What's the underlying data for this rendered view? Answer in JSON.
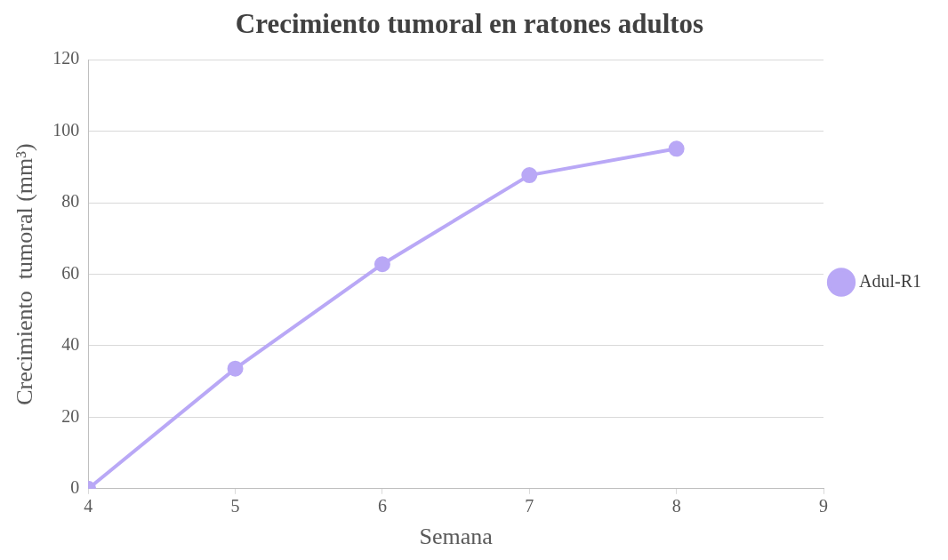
{
  "chart_data": {
    "type": "line",
    "title": "Crecimiento tumoral en ratones adultos",
    "xlabel": "Semana",
    "ylabel": "Crecimiento  tumoral (mm³)",
    "x": [
      4,
      5,
      6,
      7,
      8
    ],
    "series": [
      {
        "name": "Adul-R1",
        "color": "#b9a8f6",
        "values": [
          0,
          33.6,
          62.8,
          87.7,
          95.1
        ]
      }
    ],
    "xlim": [
      4,
      9
    ],
    "xticks": [
      4,
      5,
      6,
      7,
      8,
      9
    ],
    "ylim": [
      0,
      120
    ],
    "yticks": [
      0,
      20,
      40,
      60,
      80,
      100,
      120
    ],
    "grid": "y",
    "legend": "right",
    "marker": "circle",
    "line_style": "solid"
  }
}
